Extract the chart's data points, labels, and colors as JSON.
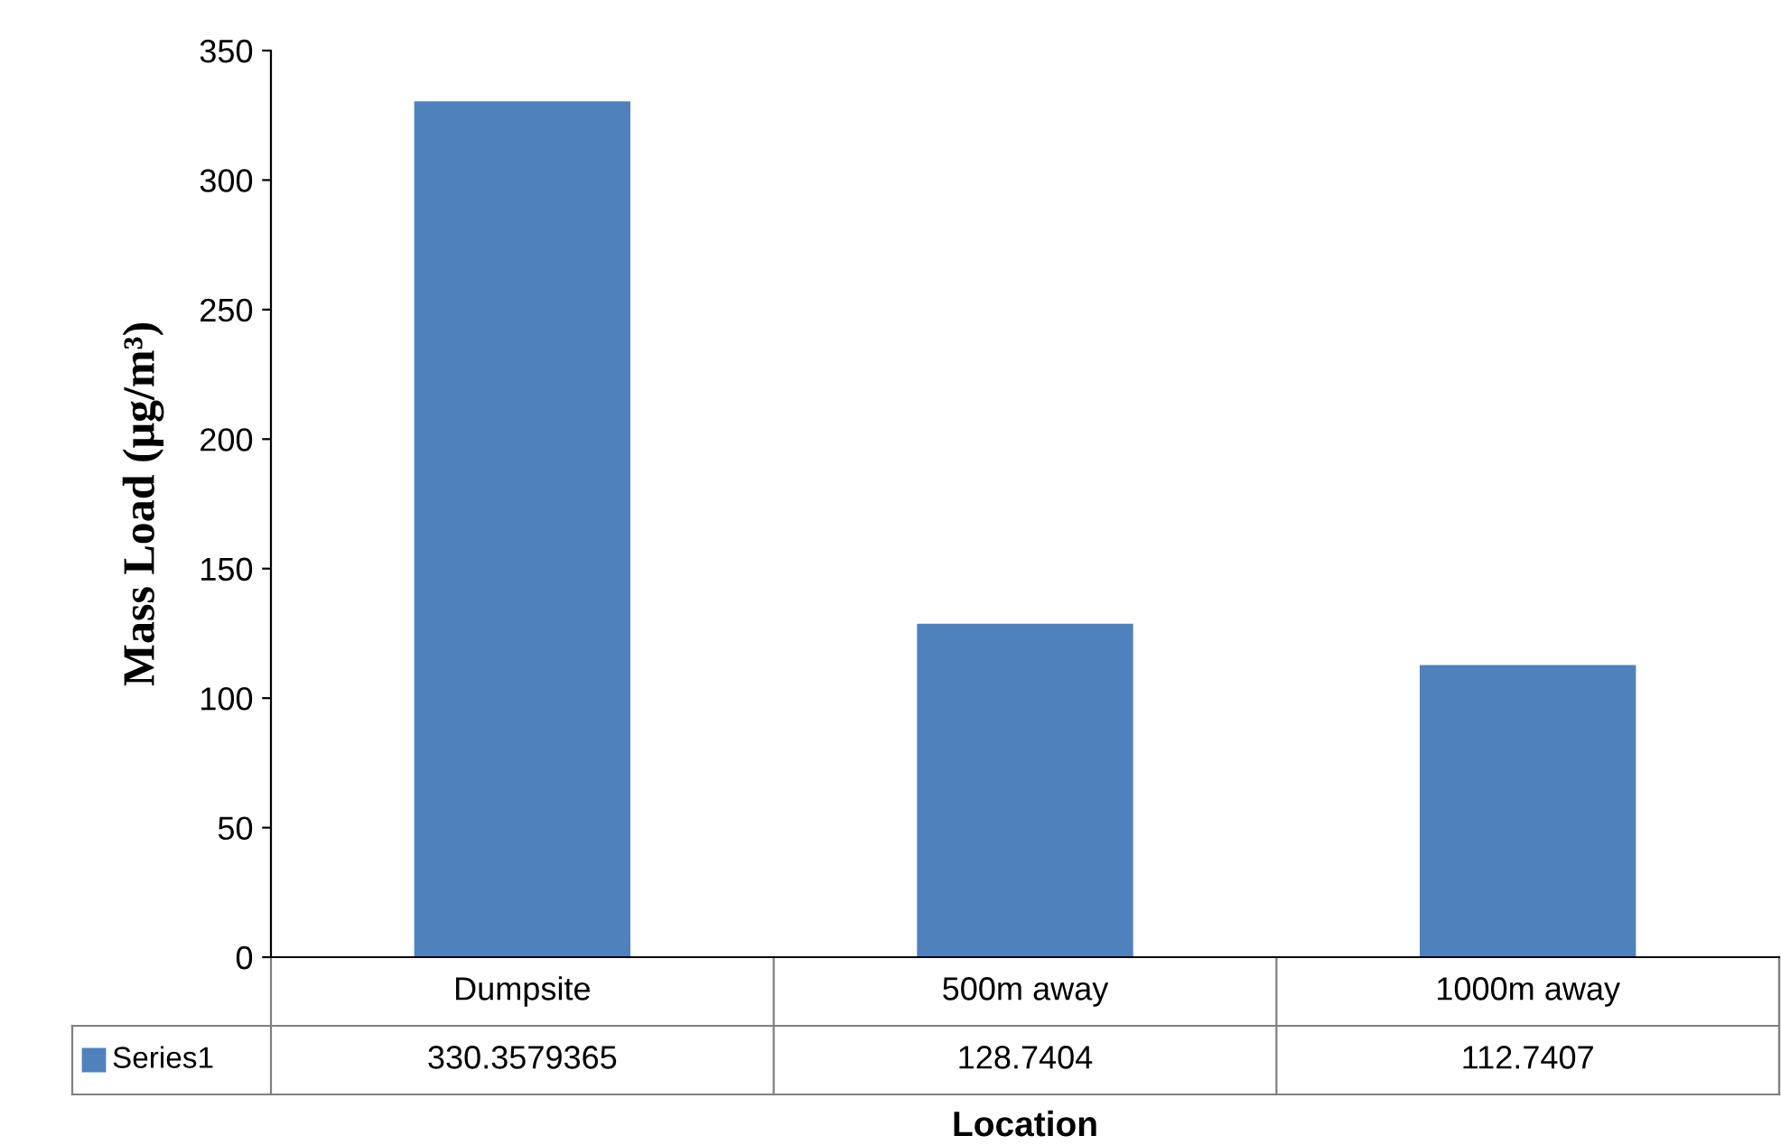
{
  "chart_data": {
    "type": "bar",
    "ylabel": "Mass Load (μg/m³)",
    "xlabel": "Location",
    "categories": [
      "Dumpsite",
      "500m away",
      "1000m away"
    ],
    "series": [
      {
        "name": "Series1",
        "color": "#4f81bd",
        "values": [
          330.3579365,
          128.7404,
          112.7407
        ],
        "value_labels": [
          "330.3579365",
          "128.7404",
          "112.7407"
        ]
      }
    ],
    "ylim": [
      0,
      350
    ],
    "yticks": [
      0,
      50,
      100,
      150,
      200,
      250,
      300,
      350
    ],
    "grid": false
  }
}
